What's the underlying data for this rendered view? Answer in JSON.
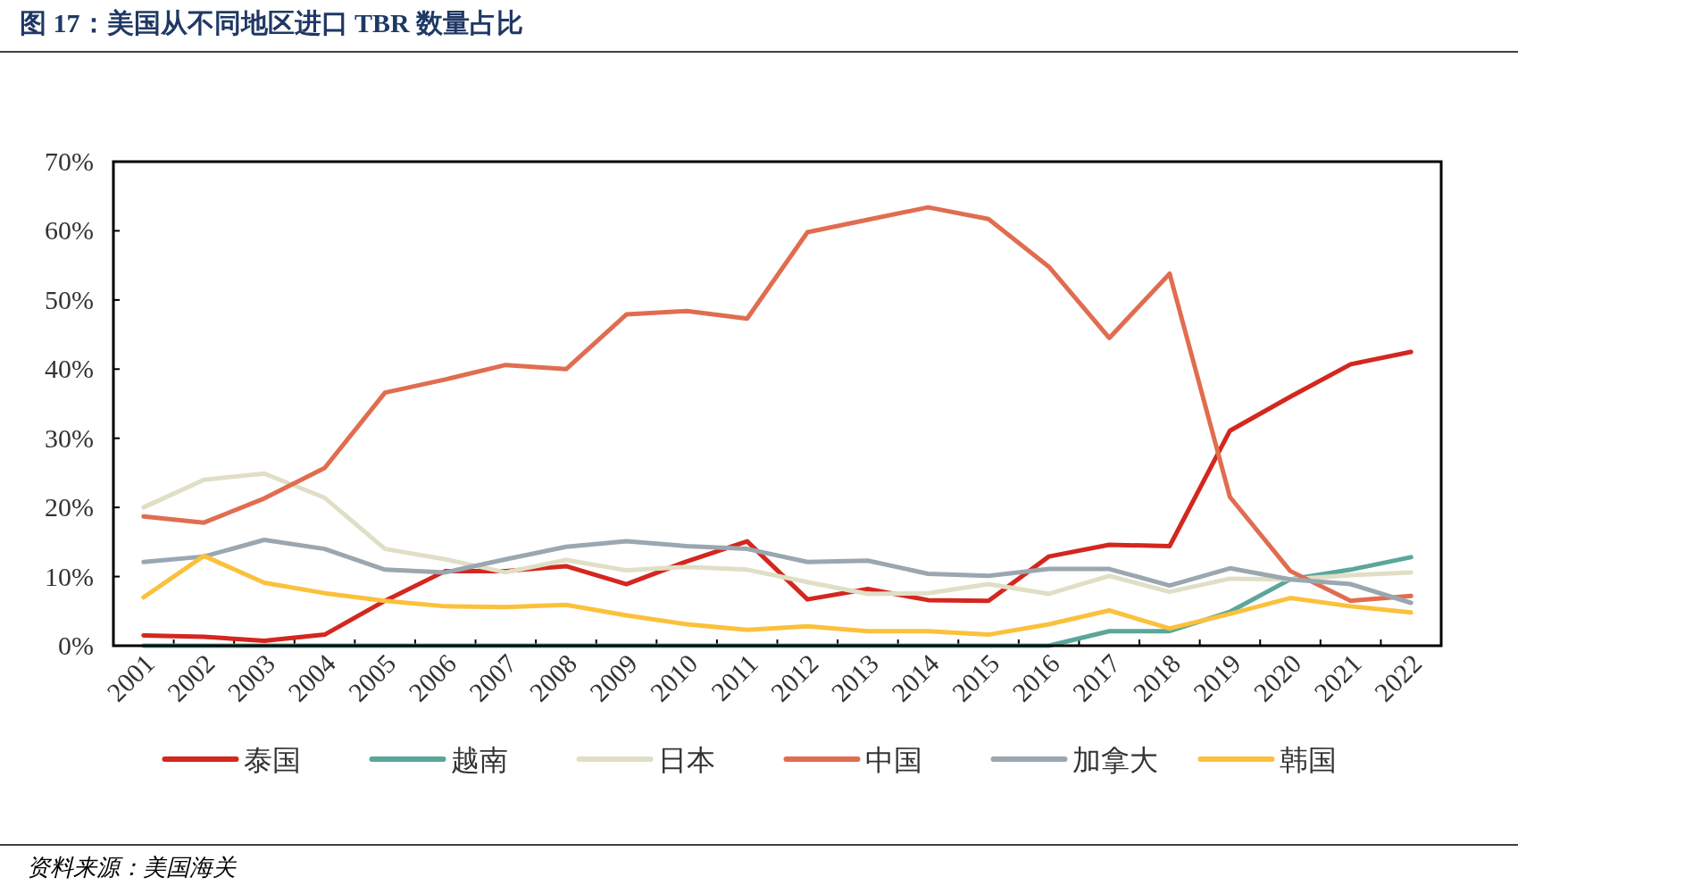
{
  "chart_data": {
    "type": "line",
    "title": "图 17：美国从不同地区进口 TBR 数量占比",
    "categories": [
      "2001",
      "2002",
      "2003",
      "2004",
      "2005",
      "2006",
      "2007",
      "2008",
      "2009",
      "2010",
      "2011",
      "2012",
      "2013",
      "2014",
      "2015",
      "2016",
      "2017",
      "2018",
      "2019",
      "2020",
      "2021",
      "2022"
    ],
    "series": [
      {
        "name": "泰国",
        "color": "#d3271f",
        "values": [
          1.5,
          1.3,
          0.7,
          1.6,
          6.5,
          10.8,
          10.8,
          11.5,
          8.9,
          12.2,
          15.1,
          6.7,
          8.2,
          6.6,
          6.5,
          12.9,
          14.6,
          14.4,
          31.1,
          36.0,
          40.7,
          42.5
        ]
      },
      {
        "name": "越南",
        "color": "#5ba69b",
        "values": [
          0,
          0,
          0,
          0,
          0,
          0,
          0,
          0,
          0,
          0,
          0,
          0,
          0,
          0,
          0,
          0,
          2.1,
          2.1,
          4.9,
          9.6,
          11.0,
          12.8
        ]
      },
      {
        "name": "日本",
        "color": "#e0dfc6",
        "values": [
          20.0,
          24.0,
          24.9,
          21.4,
          14.0,
          12.5,
          10.6,
          12.4,
          10.9,
          11.4,
          11.0,
          9.2,
          7.5,
          7.6,
          8.9,
          7.5,
          10.1,
          7.8,
          9.7,
          9.6,
          10.2,
          10.6
        ]
      },
      {
        "name": "中国",
        "color": "#e06d50",
        "values": [
          18.7,
          17.8,
          21.3,
          25.7,
          36.6,
          38.5,
          40.6,
          40.0,
          47.9,
          48.4,
          47.3,
          59.8,
          61.6,
          63.4,
          61.7,
          54.8,
          44.5,
          53.8,
          21.5,
          10.8,
          6.5,
          7.2
        ]
      },
      {
        "name": "加拿大",
        "color": "#9aa7b0",
        "values": [
          12.1,
          12.9,
          15.3,
          14.0,
          11.0,
          10.6,
          12.5,
          14.3,
          15.1,
          14.4,
          14.0,
          12.1,
          12.3,
          10.4,
          10.1,
          11.1,
          11.1,
          8.7,
          11.2,
          9.6,
          8.9,
          6.2
        ]
      },
      {
        "name": "韩国",
        "color": "#fbc13c",
        "values": [
          7.0,
          13.0,
          9.1,
          7.6,
          6.5,
          5.7,
          5.6,
          5.9,
          4.4,
          3.1,
          2.3,
          2.8,
          2.1,
          2.1,
          1.6,
          3.1,
          5.1,
          2.5,
          4.6,
          6.9,
          5.7,
          4.8
        ]
      }
    ],
    "ylim": [
      0,
      70
    ],
    "yticks": [
      {
        "value": 0,
        "label": "0%"
      },
      {
        "value": 10,
        "label": "10%"
      },
      {
        "value": 20,
        "label": "20%"
      },
      {
        "value": 30,
        "label": "30%"
      },
      {
        "value": 40,
        "label": "40%"
      },
      {
        "value": 50,
        "label": "50%"
      },
      {
        "value": 60,
        "label": "60%"
      },
      {
        "value": 70,
        "label": "70%"
      }
    ],
    "grid": false,
    "legend": "bottom",
    "line_style": "solid",
    "annotations": [
      "资料来源：美国海关"
    ]
  }
}
